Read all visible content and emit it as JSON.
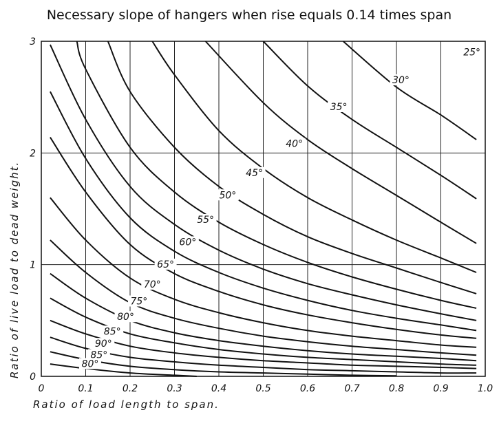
{
  "chart_data": {
    "type": "line",
    "title": "Necessary slope of hangers when rise equals 0.14 times span",
    "xlabel": "Ratio of load length to span.",
    "ylabel": "Ratio of live load to dead weight.",
    "xlim": [
      0,
      1.0
    ],
    "ylim": [
      0,
      3
    ],
    "xticks": [
      0,
      0.1,
      0.2,
      0.3,
      0.4,
      0.5,
      0.6,
      0.7,
      0.8,
      0.9,
      1.0
    ],
    "xtick_labels": [
      "0",
      "0.1",
      "0.2",
      "0.3",
      "0.4",
      "0.5",
      "0.6",
      "0.7",
      "0.8",
      "0.9",
      "1.0"
    ],
    "yticks": [
      0,
      1,
      2,
      3
    ],
    "ytick_labels": [
      "0",
      "1",
      "2",
      "3"
    ],
    "grid": true,
    "series": [
      {
        "name": "25°",
        "label_at": [
          0.97,
          2.88
        ],
        "points": [
          [
            0.96,
            2.92
          ],
          [
            0.98,
            2.88
          ]
        ]
      },
      {
        "name": "30°",
        "label_at": [
          0.81,
          2.63
        ],
        "points": [
          [
            0.68,
            3.0
          ],
          [
            0.8,
            2.59
          ],
          [
            0.9,
            2.34
          ],
          [
            0.98,
            2.12
          ]
        ]
      },
      {
        "name": "35°",
        "label_at": [
          0.67,
          2.39
        ],
        "points": [
          [
            0.5,
            3.0
          ],
          [
            0.6,
            2.6
          ],
          [
            0.7,
            2.3
          ],
          [
            0.8,
            2.05
          ],
          [
            0.9,
            1.8
          ],
          [
            0.98,
            1.59
          ]
        ]
      },
      {
        "name": "40°",
        "label_at": [
          0.57,
          2.06
        ],
        "points": [
          [
            0.37,
            3.0
          ],
          [
            0.5,
            2.45
          ],
          [
            0.6,
            2.12
          ],
          [
            0.7,
            1.86
          ],
          [
            0.8,
            1.62
          ],
          [
            0.9,
            1.38
          ],
          [
            0.98,
            1.19
          ]
        ]
      },
      {
        "name": "45°",
        "label_at": [
          0.48,
          1.8
        ],
        "points": [
          [
            0.25,
            3.0
          ],
          [
            0.3,
            2.7
          ],
          [
            0.4,
            2.2
          ],
          [
            0.5,
            1.86
          ],
          [
            0.6,
            1.6
          ],
          [
            0.7,
            1.4
          ],
          [
            0.8,
            1.22
          ],
          [
            0.9,
            1.06
          ],
          [
            0.98,
            0.93
          ]
        ]
      },
      {
        "name": "50°",
        "label_at": [
          0.42,
          1.6
        ],
        "points": [
          [
            0.15,
            3.0
          ],
          [
            0.2,
            2.55
          ],
          [
            0.3,
            2.05
          ],
          [
            0.4,
            1.7
          ],
          [
            0.5,
            1.45
          ],
          [
            0.6,
            1.25
          ],
          [
            0.7,
            1.1
          ],
          [
            0.8,
            0.97
          ],
          [
            0.9,
            0.84
          ],
          [
            0.98,
            0.74
          ]
        ]
      },
      {
        "name": "55°",
        "label_at": [
          0.37,
          1.38
        ],
        "points": [
          [
            0.08,
            3.0
          ],
          [
            0.1,
            2.75
          ],
          [
            0.2,
            2.05
          ],
          [
            0.3,
            1.65
          ],
          [
            0.4,
            1.38
          ],
          [
            0.5,
            1.18
          ],
          [
            0.6,
            1.02
          ],
          [
            0.7,
            0.89
          ],
          [
            0.8,
            0.78
          ],
          [
            0.9,
            0.68
          ],
          [
            0.98,
            0.61
          ]
        ]
      },
      {
        "name": "60°",
        "label_at": [
          0.33,
          1.18
        ],
        "points": [
          [
            0.02,
            2.97
          ],
          [
            0.1,
            2.3
          ],
          [
            0.2,
            1.7
          ],
          [
            0.3,
            1.36
          ],
          [
            0.4,
            1.13
          ],
          [
            0.5,
            0.96
          ],
          [
            0.6,
            0.83
          ],
          [
            0.7,
            0.73
          ],
          [
            0.8,
            0.64
          ],
          [
            0.9,
            0.56
          ],
          [
            0.98,
            0.5
          ]
        ]
      },
      {
        "name": "65°",
        "label_at": [
          0.28,
          0.98
        ],
        "points": [
          [
            0.02,
            2.55
          ],
          [
            0.1,
            1.95
          ],
          [
            0.2,
            1.42
          ],
          [
            0.3,
            1.12
          ],
          [
            0.4,
            0.93
          ],
          [
            0.5,
            0.79
          ],
          [
            0.6,
            0.68
          ],
          [
            0.7,
            0.59
          ],
          [
            0.8,
            0.52
          ],
          [
            0.9,
            0.46
          ],
          [
            0.98,
            0.41
          ]
        ]
      },
      {
        "name": "70°",
        "label_at": [
          0.25,
          0.8
        ],
        "points": [
          [
            0.02,
            2.14
          ],
          [
            0.1,
            1.65
          ],
          [
            0.2,
            1.18
          ],
          [
            0.3,
            0.92
          ],
          [
            0.4,
            0.76
          ],
          [
            0.5,
            0.64
          ],
          [
            0.6,
            0.55
          ],
          [
            0.7,
            0.48
          ],
          [
            0.8,
            0.42
          ],
          [
            0.9,
            0.37
          ],
          [
            0.98,
            0.34
          ]
        ]
      },
      {
        "name": "75°",
        "label_at": [
          0.22,
          0.65
        ],
        "points": [
          [
            0.02,
            1.6
          ],
          [
            0.1,
            1.22
          ],
          [
            0.2,
            0.88
          ],
          [
            0.3,
            0.69
          ],
          [
            0.4,
            0.57
          ],
          [
            0.5,
            0.48
          ],
          [
            0.6,
            0.41
          ],
          [
            0.7,
            0.36
          ],
          [
            0.8,
            0.32
          ],
          [
            0.9,
            0.28
          ],
          [
            0.98,
            0.26
          ]
        ]
      },
      {
        "name": "80°",
        "label_at": [
          0.19,
          0.51
        ],
        "points": [
          [
            0.02,
            1.22
          ],
          [
            0.1,
            0.93
          ],
          [
            0.2,
            0.66
          ],
          [
            0.3,
            0.52
          ],
          [
            0.4,
            0.43
          ],
          [
            0.5,
            0.36
          ],
          [
            0.6,
            0.31
          ],
          [
            0.7,
            0.27
          ],
          [
            0.8,
            0.24
          ],
          [
            0.9,
            0.21
          ],
          [
            0.98,
            0.19
          ]
        ]
      },
      {
        "name": "85°",
        "label_at": [
          0.16,
          0.38
        ],
        "points": [
          [
            0.02,
            0.92
          ],
          [
            0.1,
            0.7
          ],
          [
            0.2,
            0.5
          ],
          [
            0.3,
            0.39
          ],
          [
            0.4,
            0.32
          ],
          [
            0.5,
            0.27
          ],
          [
            0.6,
            0.23
          ],
          [
            0.7,
            0.2
          ],
          [
            0.8,
            0.18
          ],
          [
            0.9,
            0.16
          ],
          [
            0.98,
            0.14
          ]
        ]
      },
      {
        "name": "90°",
        "label_at": [
          0.14,
          0.27
        ],
        "points": [
          [
            0.02,
            0.7
          ],
          [
            0.1,
            0.53
          ],
          [
            0.2,
            0.38
          ],
          [
            0.3,
            0.3
          ],
          [
            0.4,
            0.24
          ],
          [
            0.5,
            0.2
          ],
          [
            0.6,
            0.17
          ],
          [
            0.7,
            0.15
          ],
          [
            0.8,
            0.13
          ],
          [
            0.9,
            0.11
          ],
          [
            0.98,
            0.1
          ]
        ]
      },
      {
        "name": "85°",
        "label_at": [
          0.13,
          0.17
        ],
        "points": [
          [
            0.02,
            0.5
          ],
          [
            0.1,
            0.38
          ],
          [
            0.2,
            0.27
          ],
          [
            0.3,
            0.21
          ],
          [
            0.4,
            0.17
          ],
          [
            0.5,
            0.14
          ],
          [
            0.6,
            0.12
          ],
          [
            0.7,
            0.1
          ],
          [
            0.8,
            0.09
          ],
          [
            0.9,
            0.08
          ],
          [
            0.98,
            0.07
          ]
        ]
      },
      {
        "name": "80°",
        "label_at": [
          0.11,
          0.09
        ],
        "points": [
          [
            0.02,
            0.35
          ],
          [
            0.1,
            0.25
          ],
          [
            0.2,
            0.17
          ],
          [
            0.3,
            0.13
          ],
          [
            0.4,
            0.1
          ],
          [
            0.5,
            0.08
          ],
          [
            0.6,
            0.06
          ],
          [
            0.7,
            0.05
          ],
          [
            0.8,
            0.04
          ],
          [
            0.9,
            0.03
          ],
          [
            0.98,
            0.03
          ]
        ]
      },
      {
        "name": "",
        "label_at": null,
        "points": [
          [
            0.02,
            0.22
          ],
          [
            0.1,
            0.15
          ],
          [
            0.2,
            0.09
          ],
          [
            0.3,
            0.06
          ],
          [
            0.4,
            0.04
          ],
          [
            0.5,
            0.03
          ],
          [
            0.6,
            0.02
          ],
          [
            0.7,
            0.01
          ],
          [
            0.8,
            0.005
          ]
        ]
      },
      {
        "name": "",
        "label_at": null,
        "points": [
          [
            0.02,
            0.11
          ],
          [
            0.1,
            0.07
          ],
          [
            0.2,
            0.03
          ],
          [
            0.3,
            0.01
          ],
          [
            0.35,
            0.0
          ]
        ]
      }
    ]
  }
}
